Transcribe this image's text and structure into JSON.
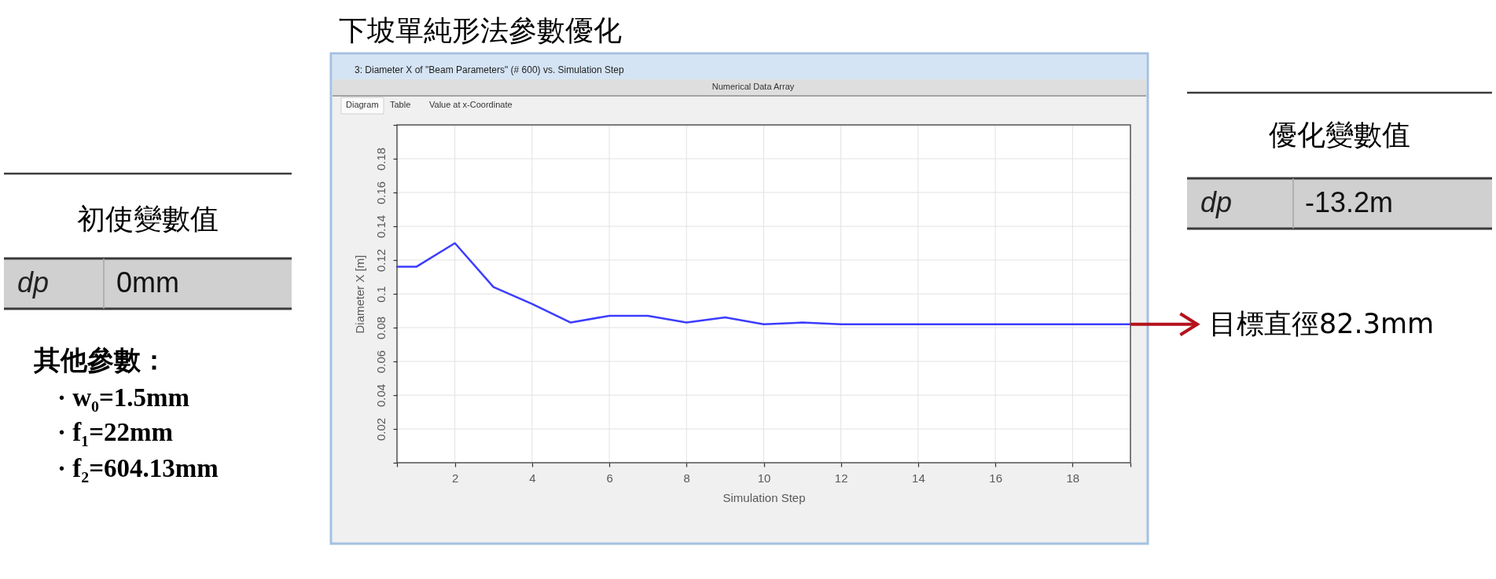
{
  "chart_data": [
    {
      "type": "other",
      "title": "初使變數值",
      "annotations": [
        "dp",
        "0mm",
        "其他參數：",
        "· w₀=1.5mm",
        "· f₁=22mm",
        "· f₂=604.13mm"
      ]
    },
    {
      "type": "line",
      "title": "下坡單純形法參數優化",
      "xlabel": "Simulation Step",
      "ylabel": "Diameter X [m]",
      "annotations": [
        "3: Diameter X of \"Beam Parameters\" (# 600) vs. Simulation Step",
        "Numerical Data Array",
        "Diagram",
        "Table",
        "Value at x-Coordinate",
        {
          "text": "目標直徑82.3mm",
          "x": 19.5,
          "y": 0.082
        }
      ],
      "x": [
        0.5,
        1,
        2,
        3,
        4,
        5,
        6,
        7,
        8,
        9,
        10,
        11,
        12,
        13,
        14,
        15,
        16,
        17,
        18,
        19,
        19.5
      ],
      "series": [
        {
          "color": "#3c3cff",
          "values": [
            0.116,
            0.116,
            0.13,
            0.104,
            0.094,
            0.083,
            0.087,
            0.087,
            0.083,
            0.086,
            0.082,
            0.083,
            0.082,
            0.082,
            0.082,
            0.082,
            0.082,
            0.082,
            0.082,
            0.082,
            0.082
          ]
        }
      ],
      "xlim": [
        0.5,
        19.5
      ],
      "ylim": [
        0,
        0.2
      ],
      "xticks": [
        {
          "value": 0.5,
          "label": null
        },
        2,
        4,
        6,
        8,
        10,
        12,
        14,
        16,
        18,
        {
          "value": 19.5,
          "label": null
        }
      ],
      "yticks": [
        {
          "value": 0,
          "label": null
        },
        0.02,
        0.04,
        0.06,
        0.08,
        0.1,
        0.12,
        0.14,
        0.16,
        0.18,
        {
          "value": 0.2,
          "label": null
        }
      ],
      "grid": true
    },
    {
      "type": "other",
      "title": "優化變數值",
      "annotations": [
        "dp",
        "-13.2m"
      ]
    }
  ]
}
